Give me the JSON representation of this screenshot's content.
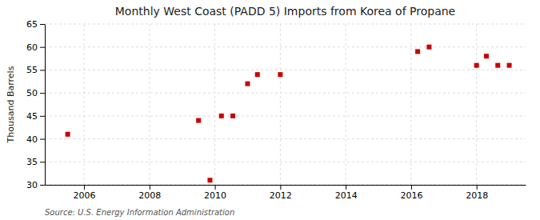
{
  "chart_data": {
    "type": "scatter",
    "title": "Monthly West Coast (PADD 5) Imports from Korea of Propane",
    "ylabel": "Thousand Barrels",
    "annotations": [
      "Source: U.S. Energy Information Administration"
    ],
    "x": [
      2005.5,
      2009.5,
      2009.85,
      2010.2,
      2010.55,
      2011.0,
      2011.3,
      2012.0,
      2016.2,
      2016.55,
      2018.0,
      2018.3,
      2018.65,
      2019.0
    ],
    "values": [
      41,
      44,
      31,
      45,
      45,
      52,
      54,
      54,
      59,
      60,
      56,
      58,
      56,
      56
    ],
    "color": "#cc0000",
    "marker": "square",
    "xlim": [
      2004.8,
      2019.5
    ],
    "ylim": [
      30,
      65
    ],
    "xticks": [
      2006,
      2008,
      2010,
      2012,
      2014,
      2016,
      2018
    ],
    "yticks": [
      30,
      35,
      40,
      45,
      50,
      55,
      60,
      65
    ],
    "grid": true
  }
}
